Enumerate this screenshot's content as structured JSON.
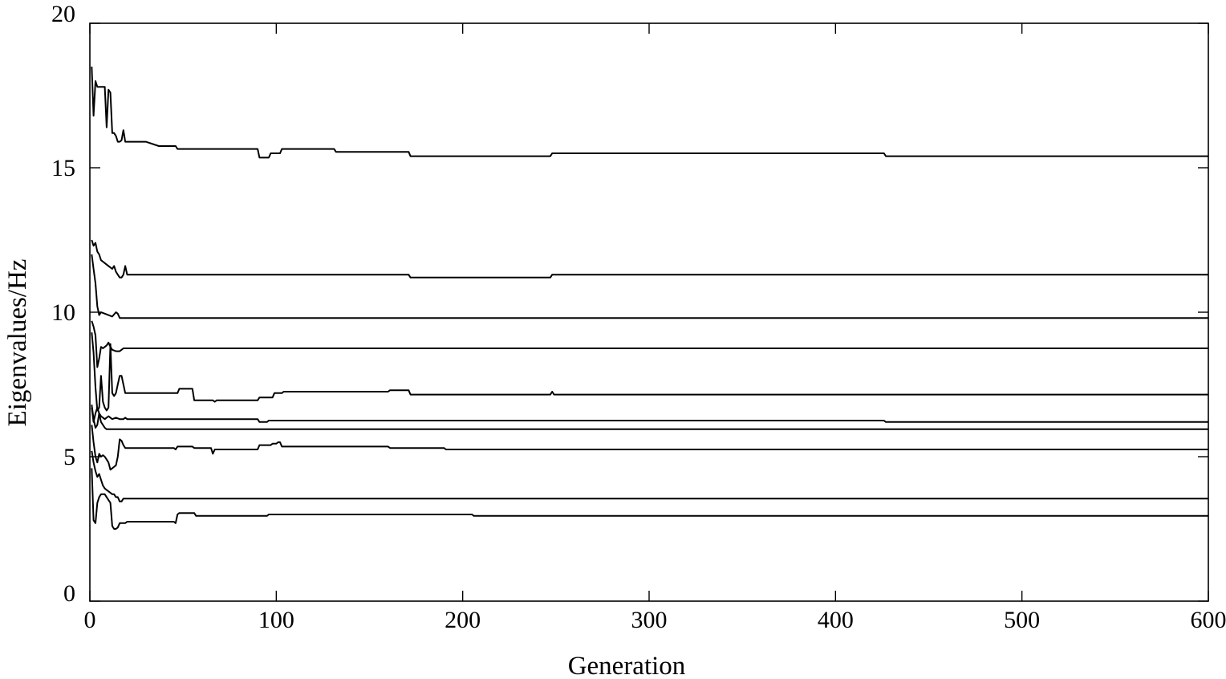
{
  "chart_data": {
    "type": "line",
    "xlabel": "Generation",
    "ylabel": "Eigenvalues/Hz",
    "xlim": [
      0,
      600
    ],
    "ylim": [
      0,
      20
    ],
    "xticks": [
      0,
      100,
      200,
      300,
      400,
      500,
      600
    ],
    "yticks": [
      0,
      5,
      10,
      15,
      20
    ],
    "grid": false,
    "line_color": "#000000",
    "series": [
      {
        "x": [
          1,
          2,
          3,
          4,
          5,
          6,
          7,
          8,
          9,
          10,
          11,
          12,
          13,
          14,
          15,
          16,
          17,
          18,
          19,
          20,
          30,
          37,
          46,
          47,
          90,
          91,
          96,
          97,
          102,
          103,
          131,
          132,
          171,
          172,
          247,
          248,
          426,
          427,
          600
        ],
        "values": [
          18.5,
          16.8,
          18.0,
          17.8,
          17.8,
          17.8,
          17.8,
          17.8,
          16.4,
          17.7,
          17.6,
          16.2,
          16.2,
          16.1,
          15.9,
          15.9,
          15.95,
          16.3,
          15.9,
          15.9,
          15.9,
          15.75,
          15.75,
          15.65,
          15.65,
          15.35,
          15.35,
          15.5,
          15.5,
          15.65,
          15.65,
          15.55,
          15.55,
          15.4,
          15.4,
          15.5,
          15.5,
          15.4,
          15.4
        ]
      },
      {
        "x": [
          1,
          2,
          3,
          4,
          5,
          6,
          8,
          10,
          12,
          13,
          14,
          15,
          16,
          17,
          18,
          19,
          20,
          100,
          171,
          172,
          247,
          248,
          600
        ],
        "values": [
          12.5,
          12.3,
          12.4,
          12.1,
          12.0,
          11.8,
          11.7,
          11.6,
          11.5,
          11.6,
          11.4,
          11.3,
          11.2,
          11.2,
          11.3,
          11.6,
          11.3,
          11.3,
          11.3,
          11.2,
          11.2,
          11.3,
          11.3
        ]
      },
      {
        "x": [
          1,
          2,
          3,
          4,
          5,
          6,
          8,
          10,
          12,
          14,
          15,
          16,
          17,
          600
        ],
        "values": [
          12.0,
          11.5,
          11.0,
          10.2,
          9.9,
          10.0,
          9.95,
          9.9,
          9.85,
          10.0,
          9.95,
          9.8,
          9.8,
          9.8
        ]
      },
      {
        "x": [
          1,
          2,
          3,
          4,
          5,
          6,
          7,
          8,
          9,
          10,
          11,
          12,
          14,
          16,
          17,
          18,
          600
        ],
        "values": [
          9.7,
          9.5,
          9.2,
          8.1,
          8.4,
          8.8,
          8.75,
          8.8,
          8.85,
          8.95,
          8.8,
          8.7,
          8.65,
          8.65,
          8.7,
          8.75,
          8.75
        ]
      },
      {
        "x": [
          1,
          2,
          3,
          4,
          5,
          6,
          7,
          8,
          9,
          10,
          11,
          12,
          13,
          14,
          15,
          16,
          17,
          18,
          19,
          47,
          48,
          55,
          56,
          66,
          67,
          68,
          90,
          91,
          98,
          99,
          103,
          104,
          160,
          161,
          171,
          172,
          247,
          248,
          249,
          600
        ],
        "values": [
          9.3,
          8.6,
          7.4,
          6.6,
          6.7,
          7.8,
          6.9,
          6.7,
          6.6,
          6.7,
          8.9,
          7.2,
          7.1,
          7.2,
          7.5,
          7.8,
          7.8,
          7.5,
          7.2,
          7.2,
          7.35,
          7.35,
          6.95,
          6.95,
          6.9,
          6.95,
          6.95,
          7.05,
          7.05,
          7.2,
          7.2,
          7.25,
          7.25,
          7.3,
          7.3,
          7.15,
          7.15,
          7.25,
          7.15,
          7.15
        ]
      },
      {
        "x": [
          1,
          2,
          3,
          4,
          5,
          6,
          8,
          10,
          12,
          14,
          16,
          18,
          19,
          20,
          90,
          91,
          95,
          96,
          426,
          427,
          600
        ],
        "values": [
          6.7,
          6.2,
          6.5,
          6.7,
          6.5,
          6.4,
          6.3,
          6.4,
          6.3,
          6.35,
          6.3,
          6.3,
          6.35,
          6.3,
          6.3,
          6.2,
          6.2,
          6.25,
          6.25,
          6.2,
          6.2
        ]
      },
      {
        "x": [
          1,
          2,
          3,
          4,
          5,
          6,
          7,
          8,
          9,
          10,
          600
        ],
        "values": [
          6.8,
          6.3,
          6.0,
          6.1,
          6.5,
          6.2,
          6.1,
          6.0,
          5.95,
          5.95,
          5.95
        ]
      },
      {
        "x": [
          1,
          2,
          3,
          4,
          5,
          6,
          7,
          8,
          9,
          10,
          11,
          12,
          13,
          14,
          15,
          16,
          17,
          18,
          19,
          20,
          21,
          45,
          46,
          47,
          48,
          54,
          55,
          56,
          65,
          66,
          67,
          68,
          90,
          91,
          97,
          98,
          100,
          101,
          102,
          103,
          105,
          160,
          161,
          190,
          191,
          600
        ],
        "values": [
          6.1,
          5.5,
          5.0,
          4.8,
          5.1,
          5.0,
          5.05,
          5.0,
          4.9,
          4.8,
          4.55,
          4.6,
          4.65,
          4.7,
          5.0,
          5.6,
          5.55,
          5.4,
          5.3,
          5.3,
          5.3,
          5.3,
          5.25,
          5.35,
          5.35,
          5.35,
          5.35,
          5.3,
          5.3,
          5.1,
          5.25,
          5.25,
          5.25,
          5.4,
          5.4,
          5.45,
          5.45,
          5.5,
          5.5,
          5.35,
          5.35,
          5.35,
          5.3,
          5.3,
          5.25,
          5.25
        ]
      },
      {
        "x": [
          1,
          2,
          3,
          4,
          5,
          6,
          7,
          8,
          9,
          10,
          11,
          12,
          13,
          14,
          15,
          16,
          17,
          18,
          600
        ],
        "values": [
          5.2,
          4.8,
          4.5,
          4.3,
          4.4,
          4.2,
          4.0,
          3.9,
          3.85,
          3.8,
          3.75,
          3.7,
          3.7,
          3.6,
          3.6,
          3.45,
          3.45,
          3.55,
          3.55
        ]
      },
      {
        "x": [
          1,
          2,
          3,
          4,
          5,
          6,
          7,
          8,
          9,
          10,
          11,
          12,
          13,
          14,
          15,
          16,
          17,
          18,
          19,
          20,
          45,
          46,
          47,
          48,
          55,
          56,
          57,
          95,
          96,
          104,
          205,
          206,
          600
        ],
        "values": [
          4.6,
          2.8,
          2.7,
          3.4,
          3.6,
          3.7,
          3.7,
          3.7,
          3.6,
          3.5,
          3.4,
          2.6,
          2.5,
          2.5,
          2.55,
          2.7,
          2.7,
          2.7,
          2.7,
          2.75,
          2.75,
          2.7,
          3.0,
          3.05,
          3.05,
          3.05,
          2.95,
          2.95,
          3.0,
          3.0,
          3.0,
          2.95,
          2.95
        ]
      }
    ]
  }
}
